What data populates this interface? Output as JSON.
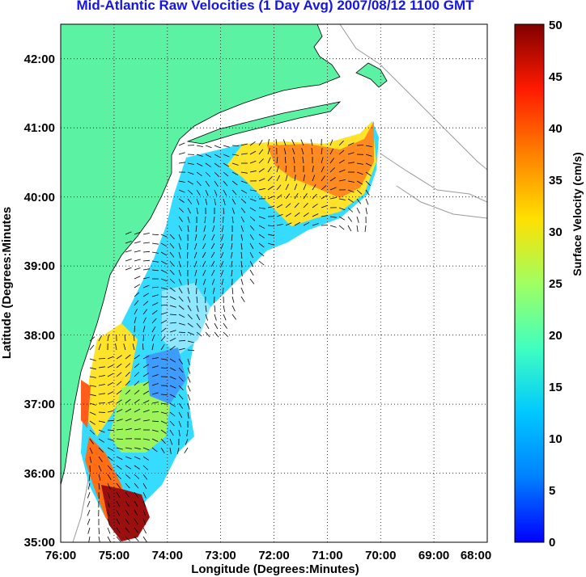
{
  "title": "Mid-Atlantic Raw Velocities (1 Day Avg) 2007/08/12 1100 GMT",
  "axes": {
    "xlabel": "Longitude (Degrees:Minutes)",
    "ylabel": "Latitude (Degrees:Minutes",
    "x_ticks": [
      "76:00",
      "75:00",
      "74:00",
      "73:00",
      "72:00",
      "71:00",
      "70:00",
      "69:00",
      "68:00"
    ],
    "y_ticks": [
      "42:00",
      "41:00",
      "40:00",
      "39:00",
      "38:00",
      "37:00",
      "36:00",
      "35:00"
    ],
    "lon_range": [
      -76,
      -68
    ],
    "lat_range": [
      35,
      42.5
    ],
    "grid": "dotted"
  },
  "colorbar": {
    "label": "Surface Velocity (cm/s)",
    "ticks": [
      "50",
      "45",
      "40",
      "35",
      "30",
      "25",
      "20",
      "15",
      "10",
      "5",
      "0"
    ],
    "range": [
      0,
      50
    ],
    "colormap": "jet"
  },
  "colors": {
    "land": "#5cf2a4",
    "water": "#ffffff",
    "title": "#1414e6",
    "bathymetry": "#9a9a9a",
    "arrows": "#000000"
  }
}
